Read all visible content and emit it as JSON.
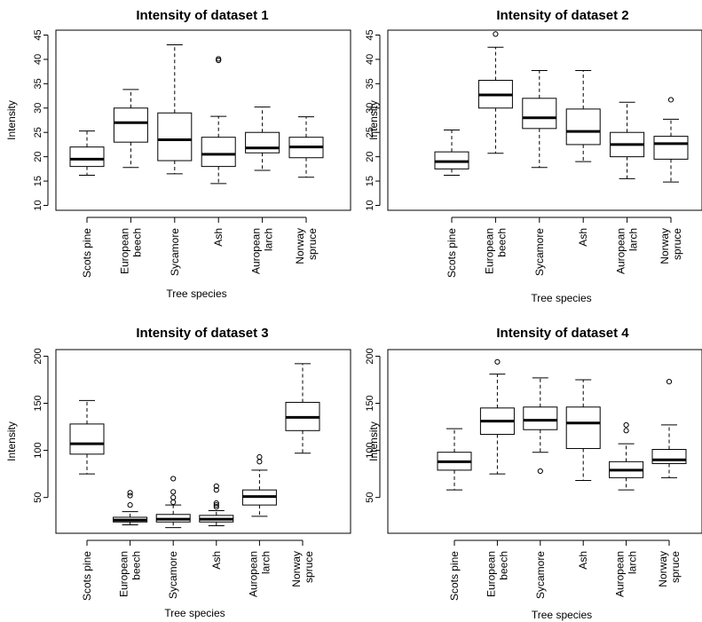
{
  "chart_data": [
    {
      "type": "box",
      "title": "Intensity of dataset 1",
      "xlabel": "Tree species",
      "ylabel": "Intensity",
      "ylim": [
        9,
        46
      ],
      "yticks": [
        10,
        15,
        20,
        25,
        30,
        35,
        40,
        45
      ],
      "categories": [
        "Scots pine",
        "European beech",
        "Sycamore",
        "Ash",
        "Auropean larch",
        "Norway spruce"
      ],
      "boxes": [
        {
          "min": 16.2,
          "q1": 18.0,
          "median": 19.5,
          "q3": 22.0,
          "max": 25.3,
          "outliers": []
        },
        {
          "min": 17.8,
          "q1": 23.0,
          "median": 27.0,
          "q3": 30.0,
          "max": 33.8,
          "outliers": []
        },
        {
          "min": 16.5,
          "q1": 19.2,
          "median": 23.5,
          "q3": 29.0,
          "max": 43.0,
          "outliers": []
        },
        {
          "min": 14.5,
          "q1": 18.0,
          "median": 20.5,
          "q3": 24.0,
          "max": 28.3,
          "outliers": [
            39.8,
            40.1
          ]
        },
        {
          "min": 17.2,
          "q1": 20.8,
          "median": 21.8,
          "q3": 25.0,
          "max": 30.2,
          "outliers": []
        },
        {
          "min": 15.8,
          "q1": 19.8,
          "median": 22.0,
          "q3": 24.0,
          "max": 28.2,
          "outliers": []
        }
      ]
    },
    {
      "type": "box",
      "title": "Intensity of dataset 2",
      "xlabel": "Tree species",
      "ylabel": "Intensity",
      "ylim": [
        9,
        46
      ],
      "yticks": [
        10,
        15,
        20,
        25,
        30,
        35,
        40,
        45
      ],
      "categories": [
        "Scots pine",
        "European beech",
        "Sycamore",
        "Ash",
        "Auropean larch",
        "Norway spruce"
      ],
      "boxes": [
        {
          "min": 16.2,
          "q1": 17.5,
          "median": 19.0,
          "q3": 21.0,
          "max": 25.5,
          "outliers": []
        },
        {
          "min": 20.7,
          "q1": 30.0,
          "median": 32.7,
          "q3": 35.7,
          "max": 42.5,
          "outliers": [
            45.2
          ]
        },
        {
          "min": 17.8,
          "q1": 25.8,
          "median": 28.0,
          "q3": 32.0,
          "max": 37.7,
          "outliers": []
        },
        {
          "min": 19.0,
          "q1": 22.5,
          "median": 25.2,
          "q3": 29.8,
          "max": 37.7,
          "outliers": []
        },
        {
          "min": 15.5,
          "q1": 20.0,
          "median": 22.5,
          "q3": 25.0,
          "max": 31.2,
          "outliers": []
        },
        {
          "min": 14.8,
          "q1": 19.5,
          "median": 22.7,
          "q3": 24.2,
          "max": 27.7,
          "outliers": [
            31.7
          ]
        }
      ]
    },
    {
      "type": "box",
      "title": "Intensity of dataset 3",
      "xlabel": "Tree species",
      "ylabel": "Intensity",
      "ylim": [
        12,
        207
      ],
      "yticks": [
        50,
        100,
        150,
        200
      ],
      "categories": [
        "Scots pine",
        "European beech",
        "Sycamore",
        "Ash",
        "Auropean larch",
        "Norway spruce"
      ],
      "boxes": [
        {
          "min": 75,
          "q1": 96,
          "median": 107,
          "q3": 128,
          "max": 153,
          "outliers": []
        },
        {
          "min": 21,
          "q1": 24,
          "median": 26,
          "q3": 29,
          "max": 35,
          "outliers": [
            42,
            52,
            55
          ]
        },
        {
          "min": 18,
          "q1": 24,
          "median": 27,
          "q3": 32,
          "max": 42,
          "outliers": [
            45,
            50,
            56,
            70
          ]
        },
        {
          "min": 20,
          "q1": 24,
          "median": 27,
          "q3": 31,
          "max": 36,
          "outliers": [
            40,
            42,
            44,
            58,
            62
          ]
        },
        {
          "min": 30,
          "q1": 42,
          "median": 51,
          "q3": 58,
          "max": 79,
          "outliers": [
            88,
            93
          ]
        },
        {
          "min": 97,
          "q1": 121,
          "median": 135,
          "q3": 151,
          "max": 192,
          "outliers": []
        }
      ]
    },
    {
      "type": "box",
      "title": "Intensity of dataset 4",
      "xlabel": "Tree species",
      "ylabel": "Intensity",
      "ylim": [
        12,
        207
      ],
      "yticks": [
        50,
        100,
        150,
        200
      ],
      "categories": [
        "Scots pine",
        "European beech",
        "Sycamore",
        "Ash",
        "Auropean larch",
        "Norway spruce"
      ],
      "boxes": [
        {
          "min": 58,
          "q1": 79,
          "median": 88,
          "q3": 98,
          "max": 123,
          "outliers": []
        },
        {
          "min": 75,
          "q1": 117,
          "median": 131,
          "q3": 145,
          "max": 181,
          "outliers": [
            194
          ]
        },
        {
          "min": 98,
          "q1": 122,
          "median": 132,
          "q3": 146,
          "max": 177,
          "outliers": [
            78
          ]
        },
        {
          "min": 68,
          "q1": 102,
          "median": 129,
          "q3": 146,
          "max": 175,
          "outliers": []
        },
        {
          "min": 58,
          "q1": 71,
          "median": 79,
          "q3": 88,
          "max": 107,
          "outliers": [
            121,
            127
          ]
        },
        {
          "min": 71,
          "q1": 86,
          "median": 90,
          "q3": 101,
          "max": 127,
          "outliers": [
            173
          ]
        }
      ]
    }
  ]
}
